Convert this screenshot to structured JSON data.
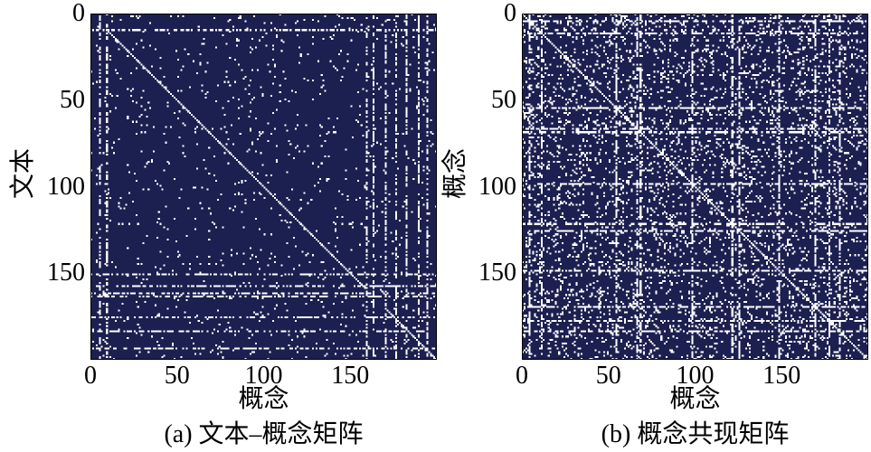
{
  "chart_data": [
    {
      "type": "heatmap",
      "caption": "(a) 文本–概念矩阵",
      "xlabel": "概念",
      "ylabel": "文本",
      "xlim": [
        0,
        200
      ],
      "ylim": [
        200,
        0
      ],
      "xticks": [
        0,
        50,
        100,
        150
      ],
      "yticks": [
        0,
        50,
        100,
        150
      ],
      "grid": false,
      "colors": {
        "background": "#1c2050",
        "nonzero": "#ffffff"
      },
      "diagonal": [
        [
          9,
          158
        ],
        [
          170,
          199
        ]
      ],
      "dense_rows": [
        9,
        150,
        157,
        161,
        163,
        175,
        183,
        193
      ],
      "dense_cols": [
        5,
        9,
        159,
        163,
        170,
        176,
        182,
        189,
        194
      ],
      "nonzero_fraction": 0.025,
      "line_nonzero_fraction": 0.5
    },
    {
      "type": "heatmap",
      "caption": "(b) 概念共现矩阵",
      "xlabel": "概念",
      "ylabel": "概念",
      "xlim": [
        0,
        200
      ],
      "ylim": [
        200,
        0
      ],
      "xticks": [
        0,
        50,
        100,
        150
      ],
      "yticks": [
        0,
        50,
        100,
        150
      ],
      "grid": false,
      "symmetric": true,
      "colors": {
        "background": "#1c2050",
        "nonzero": "#ffffff"
      },
      "diagonal": [
        [
          0,
          199
        ]
      ],
      "dense_rows": [
        4,
        11,
        54,
        66,
        68,
        98,
        121,
        125,
        148,
        169,
        177,
        183
      ],
      "dense_cols": [
        4,
        11,
        54,
        66,
        68,
        98,
        121,
        125,
        148,
        169,
        177,
        183
      ],
      "nonzero_fraction": 0.11,
      "line_nonzero_fraction": 0.6
    }
  ]
}
